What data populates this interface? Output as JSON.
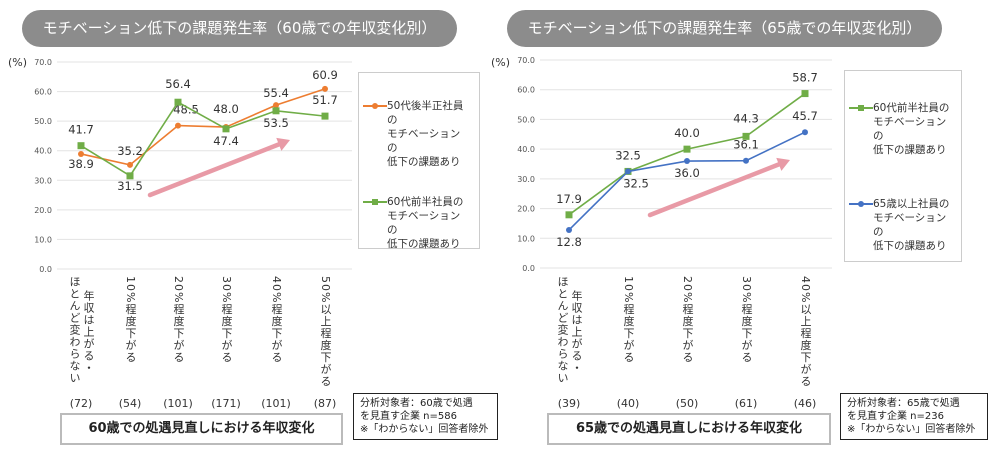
{
  "chart_data": [
    {
      "type": "line",
      "title": "モチベーション低下の課題発生率（60歳での年収変化別）",
      "ylabel": "(%)",
      "xlabel": "60歳での処遇見直しにおける年収変化",
      "ylim": [
        0,
        70
      ],
      "yticks": [
        "0.0",
        "10.0",
        "20.0",
        "30.0",
        "40.0",
        "50.0",
        "60.0",
        "70.0"
      ],
      "grid": true,
      "legend_placement": "right",
      "categories": [
        "年収は上がる・ほとんど変わらない",
        "10%程度下がる",
        "20%程度下がる",
        "30%程度下がる",
        "40%程度下がる",
        "50%以上程度下がる"
      ],
      "category_counts": [
        "(72)",
        "(54)",
        "(101)",
        "(171)",
        "(101)",
        "(87)"
      ],
      "series": [
        {
          "name": "50代後半正社員のモチベーションの低下の課題あり",
          "color": "#ed7d31",
          "marker": "circle",
          "values": [
            38.9,
            35.2,
            48.5,
            48.0,
            55.4,
            60.9
          ]
        },
        {
          "name": "60代前半社員のモチベーションの低下の課題あり",
          "color": "#70ad47",
          "marker": "square",
          "values": [
            41.7,
            31.5,
            56.4,
            47.4,
            53.5,
            51.7
          ]
        }
      ],
      "trend_arrow_color": "#e89aa6",
      "note": [
        "分析対象者：60歳で処遇",
        "を見直す企業 n=586",
        "※「わからない」回答者除外"
      ]
    },
    {
      "type": "line",
      "title": "モチベーション低下の課題発生率（65歳での年収変化別）",
      "ylabel": "(%)",
      "xlabel": "65歳での処遇見直しにおける年収変化",
      "ylim": [
        0,
        70
      ],
      "yticks": [
        "0.0",
        "10.0",
        "20.0",
        "30.0",
        "40.0",
        "50.0",
        "60.0",
        "70.0"
      ],
      "grid": true,
      "legend_placement": "right",
      "categories": [
        "年収は上がる・ほとんど変わらない",
        "10%程度下がる",
        "20%程度下がる",
        "30%程度下がる",
        "40%以上程度下がる"
      ],
      "category_counts": [
        "(39)",
        "(40)",
        "(50)",
        "(61)",
        "(46)"
      ],
      "series": [
        {
          "name": "60代前半社員のモチベーションの低下の課題あり",
          "color": "#70ad47",
          "marker": "square",
          "values": [
            17.9,
            32.5,
            40.0,
            44.3,
            58.7
          ]
        },
        {
          "name": "65歳以上社員のモチベーションの低下の課題あり",
          "color": "#4472c4",
          "marker": "circle",
          "values": [
            12.8,
            32.5,
            36.0,
            36.1,
            45.7
          ]
        }
      ],
      "trend_arrow_color": "#e89aa6",
      "note": [
        "分析対象者：65歳で処遇",
        "を見直す企業 n=236",
        "※「わからない」回答者除外"
      ]
    }
  ],
  "legend_lines": [
    [
      [
        "50代後半正社員の",
        "モチベーションの",
        "低下の課題あり"
      ],
      [
        "60代前半社員の",
        "モチベーションの",
        "低下の課題あり"
      ]
    ],
    [
      [
        "60代前半社員の",
        "モチベーションの",
        "低下の課題あり"
      ],
      [
        "65歳以上社員の",
        "モチベーションの",
        "低下の課題あり"
      ]
    ]
  ],
  "category_label_columns": [
    [
      [
        "ほとんど変わらない",
        "年収は上がる・"
      ],
      [
        "10%程度下がる"
      ],
      [
        "20%程度下がる"
      ],
      [
        "30%程度下がる"
      ],
      [
        "40%程度下がる"
      ],
      [
        "50%以上程度下がる"
      ]
    ],
    [
      [
        "ほとんど変わらない",
        "年収は上がる・"
      ],
      [
        "10%程度下がる"
      ],
      [
        "20%程度下がる"
      ],
      [
        "30%程度下がる"
      ],
      [
        "40%以上程度下がる"
      ]
    ]
  ]
}
